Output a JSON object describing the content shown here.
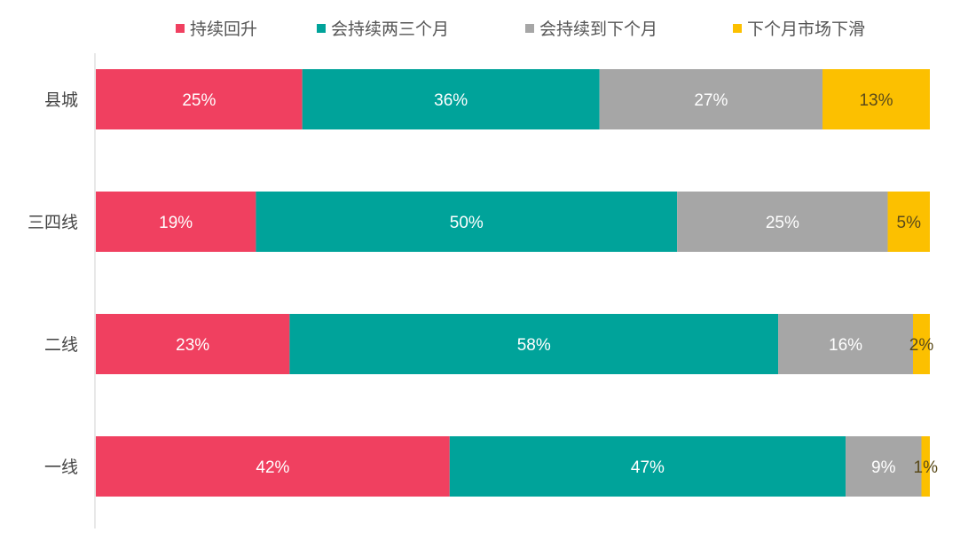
{
  "chart_data": {
    "type": "bar",
    "orientation": "horizontal",
    "stacked": true,
    "title": "",
    "xlabel": "",
    "ylabel": "",
    "xlim": [
      0,
      100
    ],
    "grid": false,
    "legend": {
      "position": "top"
    },
    "categories": [
      "县城",
      "三四线",
      "二线",
      "一线"
    ],
    "series": [
      {
        "name": "持续回升",
        "color": "#f04060",
        "values": [
          25,
          19,
          23,
          42
        ],
        "labels": [
          "25%",
          "19%",
          "23%",
          "42%"
        ],
        "label_color": "#ffffff"
      },
      {
        "name": "会持续两三个月",
        "color": "#00a39a",
        "values": [
          36,
          50,
          58,
          47
        ],
        "labels": [
          "36%",
          "50%",
          "58%",
          "47%"
        ],
        "label_color": "#ffffff"
      },
      {
        "name": "会持续到下个月",
        "color": "#a6a6a6",
        "values": [
          27,
          25,
          16,
          9
        ],
        "labels": [
          "27%",
          "25%",
          "16%",
          "9%"
        ],
        "label_color": "#ffffff"
      },
      {
        "name": "下个月市场下滑",
        "color": "#fcc000",
        "values": [
          13,
          5,
          2,
          1
        ],
        "labels": [
          "13%",
          "5%",
          "2%",
          "1%"
        ],
        "label_color": "#5a4a1a"
      }
    ]
  }
}
